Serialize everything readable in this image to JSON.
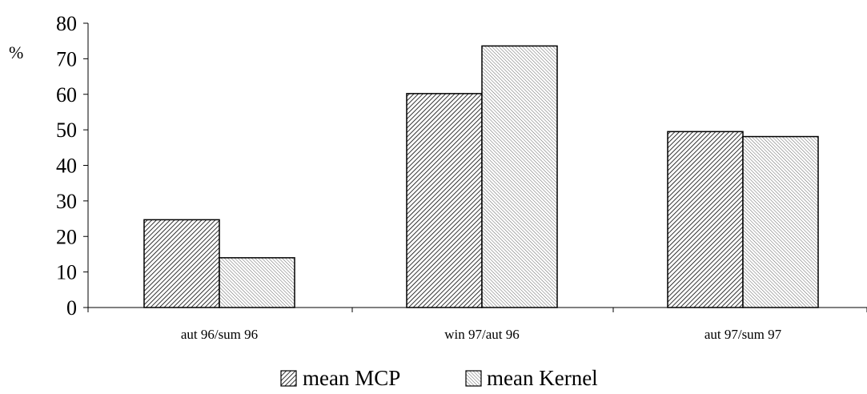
{
  "chart_data": {
    "type": "bar",
    "title": "",
    "xlabel": "",
    "ylabel": "%",
    "ylim": [
      0,
      80
    ],
    "yticks": [
      "0",
      "10",
      "20",
      "30",
      "40",
      "50",
      "60",
      "70",
      "80"
    ],
    "grid": false,
    "legend_position": "bottom",
    "categories": [
      "aut 96/sum 96",
      "win 97/aut 96",
      "aut 97/sum 97"
    ],
    "series": [
      {
        "name": "mean MCP",
        "values": [
          24.7,
          60.2,
          49.5
        ],
        "pattern": "diagonal-dense"
      },
      {
        "name": "mean Kernel",
        "values": [
          14.0,
          73.6,
          48.1
        ],
        "pattern": "diagonal-fine"
      }
    ],
    "colors": {
      "stroke": "#000000",
      "background": "#ffffff"
    }
  }
}
